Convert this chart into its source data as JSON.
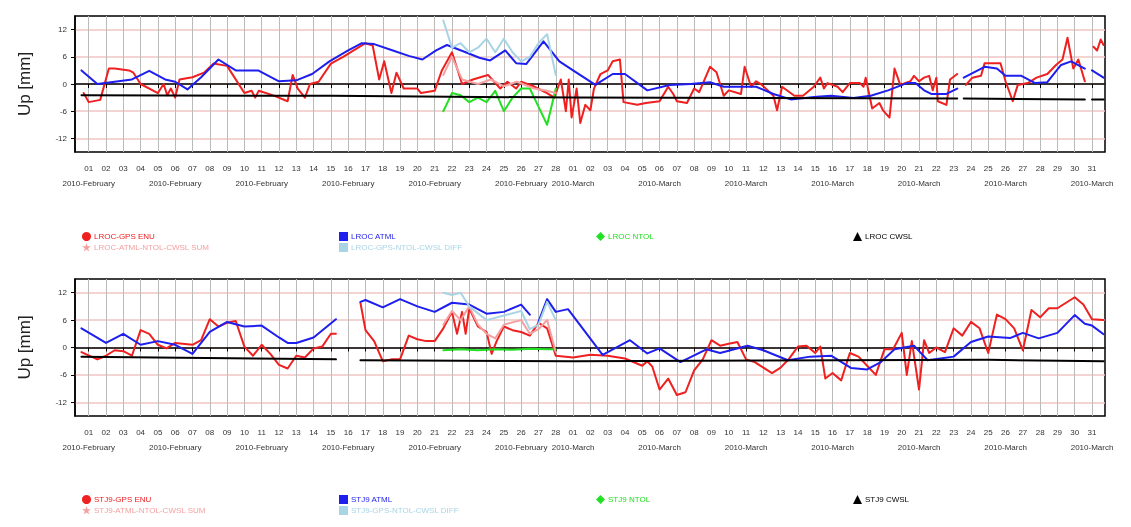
{
  "chart_data": [
    {
      "type": "line",
      "ylabel": "Up [mm]",
      "ylim": [
        -15,
        15
      ],
      "yticks": [
        -12,
        -6,
        0,
        6,
        12
      ],
      "xlim": [
        "2010-01-31T05:00",
        "2010-03-31T18:00"
      ],
      "grid": true,
      "legend": "bottom",
      "line_style": "solid",
      "xticks": [
        {
          "value": "2010-02-01",
          "label": "01\n2010-February"
        },
        {
          "value": "2010-02-02",
          "label": "02"
        },
        {
          "value": "2010-02-03",
          "label": "03"
        },
        {
          "value": "2010-02-04",
          "label": "04"
        },
        {
          "value": "2010-02-05",
          "label": "05"
        },
        {
          "value": "2010-02-06",
          "label": "06\n2010-February"
        },
        {
          "value": "2010-02-07",
          "label": "07"
        },
        {
          "value": "2010-02-08",
          "label": "08"
        },
        {
          "value": "2010-02-09",
          "label": "09"
        },
        {
          "value": "2010-02-10",
          "label": "10"
        },
        {
          "value": "2010-02-11",
          "label": "11\n2010-February"
        },
        {
          "value": "2010-02-12",
          "label": "12"
        },
        {
          "value": "2010-02-13",
          "label": "13"
        },
        {
          "value": "2010-02-14",
          "label": "14"
        },
        {
          "value": "2010-02-15",
          "label": "15"
        },
        {
          "value": "2010-02-16",
          "label": "16\n2010-February"
        },
        {
          "value": "2010-02-17",
          "label": "17"
        },
        {
          "value": "2010-02-18",
          "label": "18"
        },
        {
          "value": "2010-02-19",
          "label": "19"
        },
        {
          "value": "2010-02-20",
          "label": "20"
        },
        {
          "value": "2010-02-21",
          "label": "21\n2010-February"
        },
        {
          "value": "2010-02-22",
          "label": "22"
        },
        {
          "value": "2010-02-23",
          "label": "23"
        },
        {
          "value": "2010-02-24",
          "label": "24"
        },
        {
          "value": "2010-02-25",
          "label": "25"
        },
        {
          "value": "2010-02-26",
          "label": "26\n2010-February"
        },
        {
          "value": "2010-02-27",
          "label": "27"
        },
        {
          "value": "2010-02-28",
          "label": "28"
        },
        {
          "value": "2010-03-01",
          "label": "01\n2010-March"
        },
        {
          "value": "2010-03-02",
          "label": "02"
        },
        {
          "value": "2010-03-03",
          "label": "03"
        },
        {
          "value": "2010-03-04",
          "label": "04"
        },
        {
          "value": "2010-03-05",
          "label": "05"
        },
        {
          "value": "2010-03-06",
          "label": "06\n2010-March"
        },
        {
          "value": "2010-03-07",
          "label": "07"
        },
        {
          "value": "2010-03-08",
          "label": "08"
        },
        {
          "value": "2010-03-09",
          "label": "09"
        },
        {
          "value": "2010-03-10",
          "label": "10"
        },
        {
          "value": "2010-03-11",
          "label": "11\n2010-March"
        },
        {
          "value": "2010-03-12",
          "label": "12"
        },
        {
          "value": "2010-03-13",
          "label": "13"
        },
        {
          "value": "2010-03-14",
          "label": "14"
        },
        {
          "value": "2010-03-15",
          "label": "15"
        },
        {
          "value": "2010-03-16",
          "label": "16\n2010-March"
        },
        {
          "value": "2010-03-17",
          "label": "17"
        },
        {
          "value": "2010-03-18",
          "label": "18"
        },
        {
          "value": "2010-03-19",
          "label": "19"
        },
        {
          "value": "2010-03-20",
          "label": "20"
        },
        {
          "value": "2010-03-21",
          "label": "21\n2010-March"
        },
        {
          "value": "2010-03-22",
          "label": "22"
        },
        {
          "value": "2010-03-23",
          "label": "23"
        },
        {
          "value": "2010-03-24",
          "label": "24"
        },
        {
          "value": "2010-03-25",
          "label": "25"
        },
        {
          "value": "2010-03-26",
          "label": "26\n2010-March"
        },
        {
          "value": "2010-03-27",
          "label": "27"
        },
        {
          "value": "2010-03-28",
          "label": "28"
        },
        {
          "value": "2010-03-29",
          "label": "29"
        },
        {
          "value": "2010-03-30",
          "label": "30"
        },
        {
          "value": "2010-03-31",
          "label": "31\n2010-March"
        }
      ],
      "series": [
        {
          "name": "LROC-GPS ENU",
          "color": "#ee2020",
          "x": [
            "2010-01-31T17:00",
            "2010-02-01T00:00",
            "2010-02-01T16:00",
            "2010-02-02T04:00",
            "2010-02-02T12:00",
            "2010-02-03T08:00",
            "2010-02-03T14:00",
            "2010-02-04T00:00",
            "2010-02-05T00:00",
            "2010-02-05T08:00",
            "2010-02-05T13:00",
            "2010-02-05T18:00",
            "2010-02-06T00:00",
            "2010-02-06T06:00",
            "2010-02-07T00:00",
            "2010-02-07T16:00",
            "2010-02-08T05:00",
            "2010-02-09T00:00",
            "2010-02-10T00:00",
            "2010-02-10T10:00",
            "2010-02-10T15:00",
            "2010-02-10T20:00",
            "2010-02-11T16:00",
            "2010-02-12T12:00",
            "2010-02-12T19:00",
            "2010-02-13T02:00",
            "2010-02-13T12:00",
            "2010-02-13T19:00",
            "2010-02-14T07:00",
            "2010-02-15T00:00",
            "2010-02-15T17:00",
            "2010-02-17T00:00",
            "2010-02-17T10:00",
            "2010-02-17T19:00",
            "2010-02-18T02:00",
            "2010-02-18T12:00",
            "2010-02-18T19:00",
            "2010-02-19T05:00",
            "2010-02-20T00:00",
            "2010-02-20T05:00",
            "2010-02-21T00:00",
            "2010-02-21T10:00",
            "2010-02-22T00:00",
            "2010-02-22T14:00",
            "2010-02-23T05:00",
            "2010-02-24T02:00",
            "2010-02-24T19:00",
            "2010-02-25T05:00",
            "2010-02-25T17:00",
            "2010-02-26T00:00",
            "2010-02-26T17:00",
            "2010-02-27T12:00",
            "2010-02-27T22:00",
            "2010-02-28T07:00",
            "2010-02-28T14:00",
            "2010-02-28T18:00",
            "2010-02-28T22:00",
            "2010-03-01T05:00",
            "2010-03-01T10:00",
            "2010-03-01T17:00",
            "2010-03-02T00:00",
            "2010-03-02T05:00",
            "2010-03-02T14:00",
            "2010-03-03T00:00",
            "2010-03-03T07:00",
            "2010-03-03T17:00",
            "2010-03-03T22:00",
            "2010-03-04T17:00",
            "2010-03-05T05:00",
            "2010-03-06T00:00",
            "2010-03-06T12:00",
            "2010-03-06T19:00",
            "2010-03-07T00:00",
            "2010-03-07T14:00",
            "2010-03-08T00:00",
            "2010-03-08T07:00",
            "2010-03-08T22:00",
            "2010-03-09T07:00",
            "2010-03-09T17:00",
            "2010-03-10T00:00",
            "2010-03-10T17:00",
            "2010-03-10T22:00",
            "2010-03-11T07:00",
            "2010-03-11T14:00",
            "2010-03-11T22:00",
            "2010-03-12T14:00",
            "2010-03-12T19:00",
            "2010-03-13T02:00",
            "2010-03-13T19:00",
            "2010-03-14T07:00",
            "2010-03-14T22:00",
            "2010-03-15T07:00",
            "2010-03-15T12:00",
            "2010-03-15T17:00",
            "2010-03-16T07:00",
            "2010-03-16T14:00",
            "2010-03-17T00:00",
            "2010-03-17T14:00",
            "2010-03-17T19:00",
            "2010-03-17T22:00",
            "2010-03-18T07:00",
            "2010-03-18T17:00",
            "2010-03-18T22:00",
            "2010-03-19T07:00",
            "2010-03-19T14:00",
            "2010-03-19T22:00",
            "2010-03-20T12:00",
            "2010-03-20T17:00",
            "2010-03-21T00:00",
            "2010-03-21T07:00",
            "2010-03-21T14:00",
            "2010-03-21T19:00",
            "2010-03-22T00:00",
            "2010-03-22T02:00",
            "2010-03-22T14:00",
            "2010-03-22T19:00",
            "2010-03-23T05:00",
            "2010-03-23T11:00",
            "2010-03-23T17:00",
            "2010-03-24T02:00",
            "2010-03-24T14:00",
            "2010-03-24T19:00",
            "2010-03-25T17:00",
            "2010-03-26T00:00",
            "2010-03-26T10:00",
            "2010-03-26T17:00",
            "2010-03-27T07:00",
            "2010-03-27T19:00",
            "2010-03-28T10:00",
            "2010-03-28T22:00",
            "2010-03-29T07:00",
            "2010-03-29T14:00",
            "2010-03-29T22:00",
            "2010-03-30T05:00",
            "2010-03-30T14:00",
            "2010-03-30T19:00",
            "2010-03-31T02:00",
            "2010-03-31T07:00",
            "2010-03-31T12:00",
            "2010-03-31T16:00"
          ],
          "values": [
            -2,
            -4,
            -3.5,
            3.4,
            3.4,
            3,
            2.5,
            0,
            -2,
            0,
            -2.5,
            -1,
            -3,
            1,
            1.5,
            2.5,
            4.5,
            4,
            -2,
            -1.5,
            -3,
            -1.5,
            -2.5,
            -3.8,
            2,
            -1,
            -3,
            0,
            0.5,
            4.5,
            6,
            9,
            8.5,
            1,
            5,
            -2,
            2.5,
            -1,
            -1,
            -2,
            -1.5,
            3,
            7,
            0,
            1,
            2,
            -1,
            0.5,
            -1,
            0.5,
            -0.5,
            -2,
            -3,
            1,
            -6,
            1,
            -7.4,
            -1,
            -8.6,
            -4.6,
            -5.8,
            -1,
            2.2,
            3,
            5,
            5.4,
            -4,
            -4.6,
            -4.2,
            -3.8,
            -0.6,
            -2.2,
            -3.8,
            -4.2,
            -1,
            -1.8,
            3.8,
            2.6,
            -2.6,
            -1.4,
            -2.2,
            3.8,
            -0.6,
            0.6,
            -0.2,
            -2.6,
            -5.8,
            -0.6,
            -2.6,
            -2.6,
            -0.6,
            1.4,
            -1,
            0.2,
            -0.6,
            -1.8,
            0.2,
            0.2,
            -0.6,
            1.4,
            -5.4,
            -4.2,
            -5.8,
            -7.4,
            3.4,
            -0.2,
            0.6,
            1.8,
            0.6,
            1.4,
            1.8,
            -1.4,
            1.4,
            -3.8,
            -4.6,
            1,
            2.2,
            null,
            -0.2,
            1.4,
            1.8,
            4.6,
            4.6,
            0.6,
            -3.8,
            -0.2,
            0.2,
            1.4,
            2.2,
            4.2,
            5.4,
            10.2,
            3.4,
            5.4,
            0.6,
            null,
            8.2,
            7.4,
            9.8,
            8.6
          ]
        },
        {
          "name": "LROC ATML",
          "color": "#1e1eee",
          "x": [
            "2010-01-31T14:00",
            "2010-02-01T12:00",
            "2010-02-02T12:00",
            "2010-02-03T12:00",
            "2010-02-04T12:00",
            "2010-02-05T10:00",
            "2010-02-06T00:00",
            "2010-02-06T17:00",
            "2010-02-07T12:00",
            "2010-02-08T12:00",
            "2010-02-09T12:00",
            "2010-02-10T19:00",
            "2010-02-12T00:00",
            "2010-02-13T00:00",
            "2010-02-13T22:00",
            "2010-02-14T22:00",
            "2010-02-16T00:00",
            "2010-02-16T19:00",
            "2010-02-17T12:00",
            "2010-02-18T14:00",
            "2010-02-19T12:00",
            "2010-02-20T07:00",
            "2010-02-21T02:00",
            "2010-02-21T17:00",
            "2010-02-22T19:00",
            "2010-02-23T14:00",
            "2010-02-24T05:00",
            "2010-02-25T02:00",
            "2010-02-25T17:00",
            "2010-02-26T07:00",
            "2010-02-27T07:00",
            "2010-02-28T05:00",
            "2010-03-01T00:00",
            "2010-03-02T07:00",
            "2010-03-03T07:00",
            "2010-03-04T00:00",
            "2010-03-05T07:00",
            "2010-03-06T14:00",
            "2010-03-07T19:00",
            "2010-03-08T22:00",
            "2010-03-09T17:00",
            "2010-03-11T14:00",
            "2010-03-12T14:00",
            "2010-03-13T14:00",
            "2010-03-15T02:00",
            "2010-03-15T22:00",
            "2010-03-17T05:00",
            "2010-03-18T05:00",
            "2010-03-19T05:00",
            "2010-03-20T07:00",
            "2010-03-20T19:00",
            "2010-03-21T07:00",
            "2010-03-21T17:00",
            "2010-03-22T14:00",
            "2010-03-23T05:00",
            "2010-03-23T11:00",
            "2010-03-23T14:00",
            "2010-03-24T19:00",
            "2010-03-25T12:00",
            "2010-03-26T00:00",
            "2010-03-26T22:00",
            "2010-03-27T17:00",
            "2010-03-28T10:00",
            "2010-03-29T05:00",
            "2010-03-29T19:00",
            "2010-03-30T14:00",
            "2010-03-30T19:00",
            "2010-03-31T00:00",
            "2010-03-31T16:00"
          ],
          "values": [
            3,
            0,
            0.5,
            1,
            2.9,
            1,
            0.5,
            -1.2,
            1.5,
            5.4,
            3,
            3,
            0.6,
            0.8,
            2.2,
            5,
            7.4,
            9,
            8.8,
            7.4,
            6.2,
            5.4,
            7.4,
            8.6,
            7,
            5.8,
            5.2,
            7.4,
            4.6,
            4.4,
            9.4,
            5,
            3,
            -0.2,
            2.2,
            2.2,
            -1.4,
            -0.2,
            0,
            0.4,
            -0.6,
            -0.6,
            -2.2,
            -3.4,
            -2.8,
            -2.6,
            -3.1,
            -2.6,
            -1.4,
            0.2,
            0.2,
            -1.4,
            -2.2,
            -2.2,
            -1,
            null,
            1.4,
            3.8,
            3.4,
            1.8,
            1.8,
            0.2,
            0.4,
            4.2,
            5,
            3.4,
            null,
            3,
            1.4
          ]
        },
        {
          "name": "LROC NTOL",
          "color": "#22e022",
          "x": [
            "2010-02-21T12:00",
            "2010-02-22T00:00",
            "2010-02-22T12:00",
            "2010-02-23T00:00",
            "2010-02-23T12:00",
            "2010-02-24T00:00",
            "2010-02-24T12:00",
            "2010-02-25T00:00",
            "2010-02-25T12:00",
            "2010-02-26T00:00",
            "2010-02-26T12:00",
            "2010-02-27T00:00",
            "2010-02-27T12:00",
            "2010-02-28T00:00"
          ],
          "values": [
            -6,
            -2,
            -2.5,
            -4,
            -3,
            -4,
            -1.5,
            -6,
            -3,
            -1,
            -1,
            -5,
            -9,
            -1
          ]
        },
        {
          "name": "LROC CWSL",
          "color": "#000000",
          "x": [
            "2010-01-31T14:00",
            "2010-02-15T00:00",
            "2010-03-01T00:00",
            "2010-03-23T05:00",
            "2010-03-23T11:00",
            "2010-03-23T14:00",
            "2010-03-30T14:00",
            "2010-03-30T19:00",
            "2010-03-31T00:00",
            "2010-03-31T16:00"
          ],
          "values": [
            -2.5,
            -2.6,
            -3,
            -3.2,
            null,
            -3.2,
            -3.4,
            null,
            -3.4,
            -3.4
          ]
        },
        {
          "name": "LROC-ATML-NTOL-CWSL SUM",
          "color": "#f4a0a0",
          "x": [
            "2010-02-21T12:00",
            "2010-02-22T00:00",
            "2010-02-22T14:00",
            "2010-02-23T12:00",
            "2010-02-24T06:00",
            "2010-02-25T00:00",
            "2010-02-25T18:00",
            "2010-02-26T18:00",
            "2010-02-27T12:00",
            "2010-02-28T00:00"
          ],
          "values": [
            2,
            6,
            1,
            0,
            1,
            -0.5,
            0.5,
            -1,
            -1.5,
            -2
          ]
        },
        {
          "name": "LROC-GPS-NTOL-CWSL DIFF",
          "color": "#a8d4e6",
          "x": [
            "2010-02-21T12:00",
            "2010-02-22T00:00",
            "2010-02-22T12:00",
            "2010-02-23T00:00",
            "2010-02-23T12:00",
            "2010-02-24T00:00",
            "2010-02-24T12:00",
            "2010-02-25T00:00",
            "2010-02-25T12:00",
            "2010-02-26T00:00",
            "2010-02-26T12:00",
            "2010-02-27T00:00",
            "2010-02-27T12:00",
            "2010-02-28T00:00"
          ],
          "values": [
            14,
            8,
            9,
            7,
            8,
            10,
            7,
            10,
            7,
            5,
            6,
            9,
            11,
            2
          ]
        }
      ]
    },
    {
      "type": "line",
      "ylabel": "Up [mm]",
      "ylim": [
        -15,
        15
      ],
      "yticks": [
        -12,
        -6,
        0,
        6,
        12
      ],
      "xlim": [
        "2010-01-31T05:00",
        "2010-03-31T18:00"
      ],
      "grid": true,
      "legend": "bottom",
      "line_style": "solid",
      "xticks": [
        {
          "value": "2010-02-01",
          "label": "01\n2010-February"
        },
        {
          "value": "2010-02-02",
          "label": "02"
        },
        {
          "value": "2010-02-03",
          "label": "03"
        },
        {
          "value": "2010-02-04",
          "label": "04"
        },
        {
          "value": "2010-02-05",
          "label": "05"
        },
        {
          "value": "2010-02-06",
          "label": "06\n2010-February"
        },
        {
          "value": "2010-02-07",
          "label": "07"
        },
        {
          "value": "2010-02-08",
          "label": "08"
        },
        {
          "value": "2010-02-09",
          "label": "09"
        },
        {
          "value": "2010-02-10",
          "label": "10"
        },
        {
          "value": "2010-02-11",
          "label": "11\n2010-February"
        },
        {
          "value": "2010-02-12",
          "label": "12"
        },
        {
          "value": "2010-02-13",
          "label": "13"
        },
        {
          "value": "2010-02-14",
          "label": "14"
        },
        {
          "value": "2010-02-15",
          "label": "15"
        },
        {
          "value": "2010-02-16",
          "label": "16\n2010-February"
        },
        {
          "value": "2010-02-17",
          "label": "17"
        },
        {
          "value": "2010-02-18",
          "label": "18"
        },
        {
          "value": "2010-02-19",
          "label": "19"
        },
        {
          "value": "2010-02-20",
          "label": "20"
        },
        {
          "value": "2010-02-21",
          "label": "21\n2010-February"
        },
        {
          "value": "2010-02-22",
          "label": "22"
        },
        {
          "value": "2010-02-23",
          "label": "23"
        },
        {
          "value": "2010-02-24",
          "label": "24"
        },
        {
          "value": "2010-02-25",
          "label": "25"
        },
        {
          "value": "2010-02-26",
          "label": "26\n2010-February"
        },
        {
          "value": "2010-02-27",
          "label": "27"
        },
        {
          "value": "2010-02-28",
          "label": "28"
        },
        {
          "value": "2010-03-01",
          "label": "01\n2010-March"
        },
        {
          "value": "2010-03-02",
          "label": "02"
        },
        {
          "value": "2010-03-03",
          "label": "03"
        },
        {
          "value": "2010-03-04",
          "label": "04"
        },
        {
          "value": "2010-03-05",
          "label": "05"
        },
        {
          "value": "2010-03-06",
          "label": "06\n2010-March"
        },
        {
          "value": "2010-03-07",
          "label": "07"
        },
        {
          "value": "2010-03-08",
          "label": "08"
        },
        {
          "value": "2010-03-09",
          "label": "09"
        },
        {
          "value": "2010-03-10",
          "label": "10"
        },
        {
          "value": "2010-03-11",
          "label": "11\n2010-March"
        },
        {
          "value": "2010-03-12",
          "label": "12"
        },
        {
          "value": "2010-03-13",
          "label": "13"
        },
        {
          "value": "2010-03-14",
          "label": "14"
        },
        {
          "value": "2010-03-15",
          "label": "15"
        },
        {
          "value": "2010-03-16",
          "label": "16\n2010-March"
        },
        {
          "value": "2010-03-17",
          "label": "17"
        },
        {
          "value": "2010-03-18",
          "label": "18"
        },
        {
          "value": "2010-03-19",
          "label": "19"
        },
        {
          "value": "2010-03-20",
          "label": "20"
        },
        {
          "value": "2010-03-21",
          "label": "21\n2010-March"
        },
        {
          "value": "2010-03-22",
          "label": "22"
        },
        {
          "value": "2010-03-23",
          "label": "23"
        },
        {
          "value": "2010-03-24",
          "label": "24"
        },
        {
          "value": "2010-03-25",
          "label": "25"
        },
        {
          "value": "2010-03-26",
          "label": "26\n2010-March"
        },
        {
          "value": "2010-03-27",
          "label": "27"
        },
        {
          "value": "2010-03-28",
          "label": "28"
        },
        {
          "value": "2010-03-29",
          "label": "29"
        },
        {
          "value": "2010-03-30",
          "label": "30"
        },
        {
          "value": "2010-03-31",
          "label": "31\n2010-March"
        }
      ],
      "series": [
        {
          "name": "STJ9-GPS ENU",
          "color": "#ee2020",
          "x": [
            "2010-01-31T14:00",
            "2010-02-01T12:00",
            "2010-02-02T00:00",
            "2010-02-02T12:00",
            "2010-02-03T00:00",
            "2010-02-03T12:00",
            "2010-02-04T00:00",
            "2010-02-04T12:00",
            "2010-02-05T00:00",
            "2010-02-05T12:00",
            "2010-02-06T00:00",
            "2010-02-07T00:00",
            "2010-02-07T12:00",
            "2010-02-08T00:00",
            "2010-02-08T12:00",
            "2010-02-09T00:00",
            "2010-02-09T12:00",
            "2010-02-10T00:00",
            "2010-02-10T12:00",
            "2010-02-11T00:00",
            "2010-02-11T12:00",
            "2010-02-12T00:00",
            "2010-02-12T12:00",
            "2010-02-13T00:00",
            "2010-02-13T12:00",
            "2010-02-14T00:00",
            "2010-02-14T12:00",
            "2010-02-15T00:00",
            "2010-02-15T07:00",
            "2010-02-16T00:00",
            "2010-02-16T17:00",
            "2010-02-17T00:00",
            "2010-02-17T12:00",
            "2010-02-18T00:00",
            "2010-02-18T12:00",
            "2010-02-19T00:00",
            "2010-02-19T12:00",
            "2010-02-20T00:00",
            "2010-02-20T12:00",
            "2010-02-21T00:00",
            "2010-02-21T12:00",
            "2010-02-22T00:00",
            "2010-02-22T07:00",
            "2010-02-22T14:00",
            "2010-02-22T19:00",
            "2010-02-23T00:00",
            "2010-02-23T12:00",
            "2010-02-24T00:00",
            "2010-02-24T07:00",
            "2010-02-24T14:00",
            "2010-02-25T00:00",
            "2010-02-25T12:00",
            "2010-02-26T00:00",
            "2010-02-26T12:00",
            "2010-02-27T00:00",
            "2010-02-27T12:00",
            "2010-02-28T00:00",
            "2010-03-01T00:00",
            "2010-03-02T00:00",
            "2010-03-03T00:00",
            "2010-03-04T00:00",
            "2010-03-05T00:00",
            "2010-03-05T07:00",
            "2010-03-05T14:00",
            "2010-03-06T00:00",
            "2010-03-06T12:00",
            "2010-03-07T00:00",
            "2010-03-07T12:00",
            "2010-03-08T00:00",
            "2010-03-08T12:00",
            "2010-03-09T00:00",
            "2010-03-09T12:00",
            "2010-03-10T00:00",
            "2010-03-10T12:00",
            "2010-03-11T00:00",
            "2010-03-11T12:00",
            "2010-03-12T00:00",
            "2010-03-12T12:00",
            "2010-03-13T00:00",
            "2010-03-13T12:00",
            "2010-03-14T00:00",
            "2010-03-14T12:00",
            "2010-03-15T00:00",
            "2010-03-15T07:00",
            "2010-03-15T14:00",
            "2010-03-16T00:00",
            "2010-03-16T12:00",
            "2010-03-17T00:00",
            "2010-03-17T12:00",
            "2010-03-18T00:00",
            "2010-03-18T12:00",
            "2010-03-19T00:00",
            "2010-03-19T12:00",
            "2010-03-20T00:00",
            "2010-03-20T07:00",
            "2010-03-20T14:00",
            "2010-03-21T00:00",
            "2010-03-21T07:00",
            "2010-03-21T14:00",
            "2010-03-22T00:00",
            "2010-03-22T12:00",
            "2010-03-23T00:00",
            "2010-03-23T12:00",
            "2010-03-24T00:00",
            "2010-03-24T12:00",
            "2010-03-25T00:00",
            "2010-03-25T12:00",
            "2010-03-26T00:00",
            "2010-03-26T12:00",
            "2010-03-27T00:00",
            "2010-03-27T12:00",
            "2010-03-28T00:00",
            "2010-03-28T12:00",
            "2010-03-29T00:00",
            "2010-03-29T12:00",
            "2010-03-30T00:00",
            "2010-03-30T12:00",
            "2010-03-31T00:00",
            "2010-03-31T16:00"
          ],
          "values": [
            -1,
            -2.6,
            -1.8,
            -0.6,
            -0.8,
            -1.8,
            3.8,
            3,
            0.6,
            -0.2,
            1,
            0.6,
            1.6,
            6.2,
            4.6,
            5.4,
            5.8,
            0.2,
            -1.8,
            0.6,
            -1.4,
            -3.8,
            -4.6,
            -1.8,
            -2.2,
            -0.2,
            0.2,
            3,
            3,
            null,
            9.8,
            3.8,
            1.4,
            -3,
            -2.6,
            -2.6,
            2.6,
            1.8,
            1.4,
            1.4,
            4.2,
            7.8,
            3,
            7.8,
            3,
            8.6,
            4.6,
            3.4,
            -1.4,
            1.4,
            4.6,
            3.8,
            3.4,
            2.6,
            5.4,
            4.2,
            -1.8,
            -2.2,
            -1.6,
            -1.8,
            -2.4,
            -4,
            -3,
            -4.2,
            -9.2,
            -6.8,
            -10.4,
            -9.8,
            -5,
            -2.6,
            1.6,
            0.4,
            0.8,
            1.2,
            -2.6,
            -3.2,
            -4.4,
            -5.6,
            -4.4,
            -2.4,
            0.2,
            0.4,
            -1.2,
            0.2,
            -6.8,
            -5.6,
            -7.2,
            -1.2,
            -2,
            -4,
            -6,
            -0.4,
            -0.4,
            3.2,
            -6,
            1.4,
            -9.2,
            1.6,
            -1.2,
            0,
            -1,
            4.2,
            2.6,
            5.6,
            4.2,
            -1.2,
            7.2,
            6.2,
            4.2,
            -0.6,
            8.2,
            6.6,
            8.6,
            8.6,
            9.8,
            11,
            9.4,
            6.2,
            6
          ]
        },
        {
          "name": "STJ9 ATML",
          "color": "#1e1eee",
          "x": [
            "2010-01-31T14:00",
            "2010-02-02T00:00",
            "2010-02-03T00:00",
            "2010-02-04T00:00",
            "2010-02-05T00:00",
            "2010-02-06T00:00",
            "2010-02-07T00:00",
            "2010-02-08T00:00",
            "2010-02-09T00:00",
            "2010-02-10T00:00",
            "2010-02-11T00:00",
            "2010-02-12T00:00",
            "2010-02-12T12:00",
            "2010-02-13T00:00",
            "2010-02-14T00:00",
            "2010-02-15T07:00",
            "2010-02-16T00:00",
            "2010-02-16T17:00",
            "2010-02-17T00:00",
            "2010-02-18T00:00",
            "2010-02-19T00:00",
            "2010-02-20T00:00",
            "2010-02-21T00:00",
            "2010-02-22T00:00",
            "2010-02-23T00:00",
            "2010-02-24T00:00",
            "2010-02-25T00:00",
            "2010-02-26T00:00",
            "2010-02-26T12:00",
            "2010-02-26T18:00",
            "2010-02-27T00:00",
            "2010-02-27T12:00",
            "2010-02-28T00:00",
            "2010-02-28T17:00",
            "2010-03-02T17:00",
            "2010-03-04T07:00",
            "2010-03-05T07:00",
            "2010-03-06T00:00",
            "2010-03-07T05:00",
            "2010-03-08T17:00",
            "2010-03-09T12:00",
            "2010-03-11T02:00",
            "2010-03-12T00:00",
            "2010-03-13T10:00",
            "2010-03-14T17:00",
            "2010-03-15T22:00",
            "2010-03-17T02:00",
            "2010-03-18T00:00",
            "2010-03-18T19:00",
            "2010-03-19T14:00",
            "2010-03-20T17:00",
            "2010-03-21T12:00",
            "2010-03-23T00:00",
            "2010-03-24T00:00",
            "2010-03-25T00:00",
            "2010-03-26T07:00",
            "2010-03-27T00:00",
            "2010-03-27T22:00",
            "2010-03-29T00:00",
            "2010-03-30T00:00",
            "2010-03-30T14:00",
            "2010-03-31T00:00",
            "2010-03-31T16:00"
          ],
          "values": [
            4.2,
            1,
            3,
            0.6,
            1.4,
            0.6,
            -1.4,
            3.4,
            5.6,
            4.6,
            4.8,
            2.2,
            1,
            1,
            2.2,
            6.2,
            null,
            10,
            10.4,
            8.8,
            10.6,
            9,
            7.8,
            9.8,
            9.4,
            7.4,
            7.8,
            9.4,
            7.2,
            null,
            5.6,
            10.6,
            7.8,
            8.4,
            -1.6,
            1.6,
            -1.3,
            -0.2,
            -3.2,
            -0.4,
            -1.2,
            0.4,
            -0.6,
            -2.8,
            -2,
            -1.8,
            -4.5,
            -4.8,
            -3.2,
            -0.4,
            0.4,
            -2.8,
            -2,
            1.2,
            2.4,
            2.1,
            3.2,
            2,
            3.2,
            7.1,
            5.2,
            4.8,
            2.9
          ]
        },
        {
          "name": "STJ9 NTOL",
          "color": "#22e022",
          "x": [
            "2010-02-21T12:00",
            "2010-02-22T12:00",
            "2010-02-23T12:00",
            "2010-02-24T12:00",
            "2010-02-25T12:00",
            "2010-02-26T12:00",
            "2010-02-27T12:00",
            "2010-02-28T00:00"
          ],
          "values": [
            -0.6,
            -0.4,
            -0.6,
            -0.4,
            -0.5,
            -0.3,
            -0.4,
            -0.4
          ]
        },
        {
          "name": "STJ9 CWSL",
          "color": "#000000",
          "x": [
            "2010-01-31T14:00",
            "2010-02-15T07:00",
            "2010-02-16T00:00",
            "2010-02-16T17:00",
            "2010-03-01T00:00",
            "2010-03-25T00:00",
            "2010-03-31T16:00"
          ],
          "values": [
            -2,
            -2.6,
            null,
            -2.8,
            -3,
            -2.7,
            -3
          ]
        },
        {
          "name": "STJ9-ATML-NTOL-CWSL SUM",
          "color": "#f4a0a0",
          "x": [
            "2010-02-21T12:00",
            "2010-02-22T00:00",
            "2010-02-22T12:00",
            "2010-02-23T00:00",
            "2010-02-23T12:00",
            "2010-02-24T00:00",
            "2010-02-24T12:00",
            "2010-02-25T00:00",
            "2010-02-26T00:00",
            "2010-02-26T12:00",
            "2010-02-27T00:00",
            "2010-02-27T12:00",
            "2010-02-28T00:00"
          ],
          "values": [
            5,
            8,
            6,
            9,
            5,
            3,
            2,
            5,
            6,
            3,
            4,
            6,
            -1
          ]
        },
        {
          "name": "STJ9-GPS-NTOL-CWSL DIFF",
          "color": "#a8d4e6",
          "x": [
            "2010-02-21T12:00",
            "2010-02-22T00:00",
            "2010-02-22T12:00",
            "2010-02-23T00:00",
            "2010-02-24T00:00",
            "2010-02-25T00:00",
            "2010-02-26T00:00",
            "2010-02-26T12:00",
            "2010-02-27T00:00",
            "2010-02-27T12:00",
            "2010-02-28T00:00"
          ],
          "values": [
            12,
            11.5,
            12,
            9,
            6,
            7,
            8,
            4,
            5,
            10,
            6
          ]
        }
      ]
    }
  ]
}
